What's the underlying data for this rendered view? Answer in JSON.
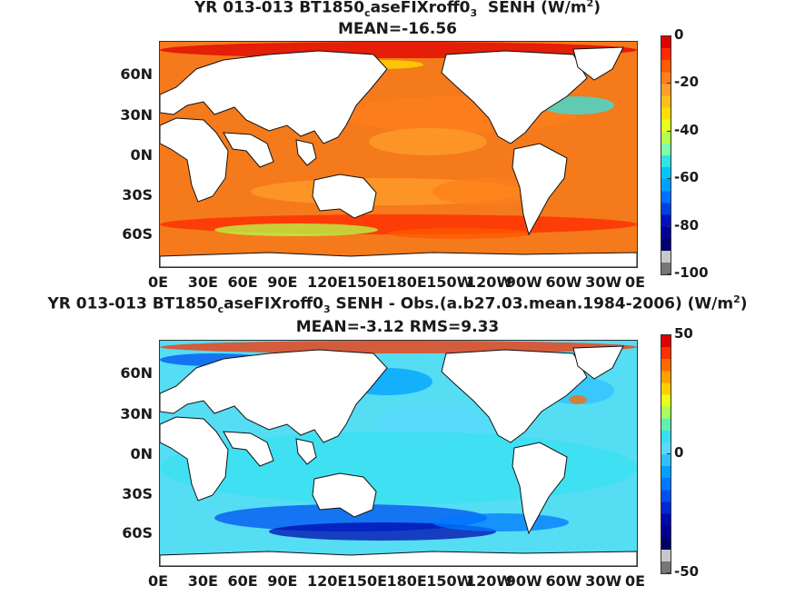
{
  "chart_data": [
    {
      "type": "heatmap",
      "title": "YR 013-013 BT1850",
      "title_sub1": "c",
      "title_mid": "aseFIXroff0",
      "title_sub2": "3",
      "title_tail": "  SENH (W/m",
      "title_sup": "2",
      "title_close": ")",
      "subtitle": "MEAN=-16.56",
      "x_ticks": [
        "0E",
        "30E",
        "60E",
        "90E",
        "120E",
        "150E",
        "180E",
        "150W",
        "120W",
        "90W",
        "60W",
        "30W",
        "0E"
      ],
      "y_ticks": [
        "60N",
        "30N",
        "0N",
        "30S",
        "60S"
      ],
      "colorbar": {
        "ticks": [
          "0",
          "-20",
          "-40",
          "-60",
          "-80",
          "-100"
        ],
        "range": [
          -100,
          0
        ],
        "colors": [
          "#df0000",
          "#ff2a00",
          "#ff5a00",
          "#ff7f1c",
          "#ff9f2a",
          "#ffbf1a",
          "#ffdf00",
          "#e6ff1a",
          "#b6ff4a",
          "#7fffaa",
          "#2fe5e5",
          "#00c8ff",
          "#00a0ff",
          "#0070ff",
          "#0040e0",
          "#0010c0",
          "#00009a",
          "#000070",
          "#c8c8c8",
          "#777777"
        ]
      },
      "ocean_color": "#f47a1c"
    },
    {
      "type": "heatmap",
      "title": "YR 013-013 BT1850",
      "title_sub1": "c",
      "title_mid": "aseFIXroff0",
      "title_sub2": "3",
      "title_tail": " SENH - Obs.(a.b27.03.mean.1984-2006) (W/m",
      "title_sup": "2",
      "title_close": ")",
      "subtitle": "MEAN=-3.12 RMS=9.33",
      "x_ticks": [
        "0E",
        "30E",
        "60E",
        "90E",
        "120E",
        "150E",
        "180E",
        "150W",
        "120W",
        "90W",
        "60W",
        "30W",
        "0E"
      ],
      "y_ticks": [
        "60N",
        "30N",
        "0N",
        "30S",
        "60S"
      ],
      "colorbar": {
        "ticks": [
          "50",
          "0",
          "-50"
        ],
        "range": [
          -50,
          50
        ],
        "colors": [
          "#df0000",
          "#ff3000",
          "#ff6a00",
          "#ff9f00",
          "#ffd000",
          "#e8ff1a",
          "#a8ff5a",
          "#60f0b0",
          "#38e0f0",
          "#5ad8ff",
          "#2fc0ff",
          "#00a0ff",
          "#0078ff",
          "#0050f0",
          "#0028d0",
          "#0008b0",
          "#000090",
          "#000068",
          "#c8c8c8",
          "#777777"
        ]
      },
      "ocean_color": "#55ddf4"
    }
  ]
}
